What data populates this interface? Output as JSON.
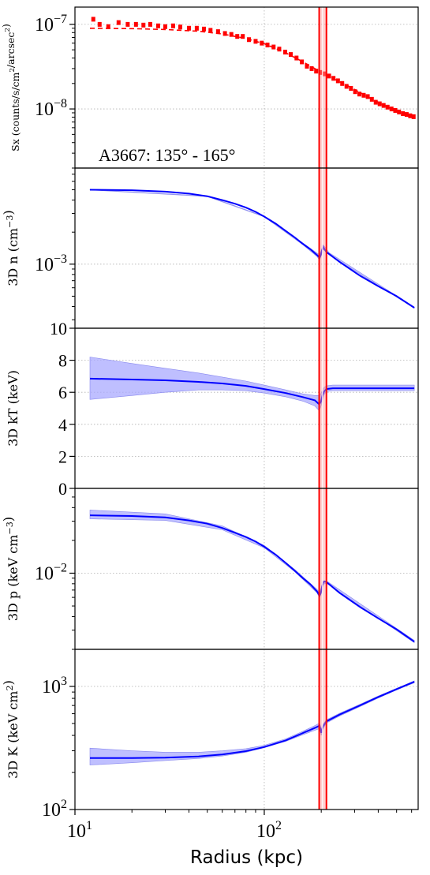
{
  "chart_data": {
    "type": "line",
    "annotation": "A3667: 135° - 165°",
    "xlabel": "Radius (kpc)",
    "x_scale": "log",
    "xlim": [
      10,
      650
    ],
    "x_ticks": [
      {
        "value": 10,
        "base": "10",
        "exp": "1"
      },
      {
        "value": 100,
        "base": "10",
        "exp": "2"
      }
    ],
    "grid": true,
    "shock_band": {
      "x_inner": 195,
      "x_outer": 213,
      "x_center": 203,
      "color": "#ff0000"
    },
    "colors": {
      "data": "#ff0000",
      "model": "#0000ff",
      "band": "#aaaaff",
      "shock": "#ff0000"
    },
    "panels": [
      {
        "key": "sx",
        "ylabel": "Sx (counts/s/cm²/arcsec²)",
        "ylabel_parts": [
          {
            "t": "Sx (counts/s/cm"
          },
          {
            "t": "2",
            "sup": true
          },
          {
            "t": "/arcsec"
          },
          {
            "t": "2",
            "sup": true
          },
          {
            "t": ")"
          }
        ],
        "y_scale": "log",
        "ylim": [
          2e-09,
          1.6e-07
        ],
        "y_ticks": [
          {
            "value": 1e-08,
            "base": "10",
            "exp": "−8"
          },
          {
            "value": 1e-07,
            "base": "10",
            "exp": "−7"
          }
        ],
        "data_points": [
          [
            12.5,
            1.15e-07
          ],
          [
            13.5,
            1e-07
          ],
          [
            15,
            9.4e-08
          ],
          [
            17,
            1.05e-07
          ],
          [
            19,
            1e-07
          ],
          [
            21,
            1e-07
          ],
          [
            23,
            9.8e-08
          ],
          [
            25,
            1e-07
          ],
          [
            27.5,
            9.6e-08
          ],
          [
            30,
            9.4e-08
          ],
          [
            33,
            9.6e-08
          ],
          [
            36,
            9.3e-08
          ],
          [
            40,
            9e-08
          ],
          [
            44,
            9e-08
          ],
          [
            48,
            8.8e-08
          ],
          [
            52,
            8.5e-08
          ],
          [
            57,
            8.2e-08
          ],
          [
            62,
            7.8e-08
          ],
          [
            67,
            7.6e-08
          ],
          [
            72,
            7.2e-08
          ],
          [
            77,
            7.2e-08
          ],
          [
            83,
            6.6e-08
          ],
          [
            90,
            6.3e-08
          ],
          [
            97,
            6e-08
          ],
          [
            104,
            5.7e-08
          ],
          [
            112,
            5.4e-08
          ],
          [
            120,
            5.1e-08
          ],
          [
            129,
            4.7e-08
          ],
          [
            138,
            4.4e-08
          ],
          [
            148,
            4e-08
          ],
          [
            158,
            3.6e-08
          ],
          [
            168,
            3.2e-08
          ],
          [
            178,
            3e-08
          ],
          [
            188,
            2.8e-08
          ],
          [
            198,
            2.7e-08
          ],
          [
            208,
            2.6e-08
          ],
          [
            220,
            2.45e-08
          ],
          [
            232,
            2.3e-08
          ],
          [
            245,
            2.15e-08
          ],
          [
            258,
            2e-08
          ],
          [
            272,
            1.85e-08
          ],
          [
            287,
            1.75e-08
          ],
          [
            302,
            1.6e-08
          ],
          [
            318,
            1.5e-08
          ],
          [
            335,
            1.45e-08
          ],
          [
            352,
            1.4e-08
          ],
          [
            370,
            1.3e-08
          ],
          [
            388,
            1.2e-08
          ],
          [
            407,
            1.15e-08
          ],
          [
            427,
            1.1e-08
          ],
          [
            448,
            1.05e-08
          ],
          [
            470,
            1e-08
          ],
          [
            492,
            9.6e-09
          ],
          [
            515,
            9.2e-09
          ],
          [
            540,
            8.8e-09
          ],
          [
            565,
            8.6e-09
          ],
          [
            590,
            8.3e-09
          ],
          [
            615,
            8.1e-09
          ]
        ],
        "model": {
          "x": [
            12,
            20,
            30,
            45,
            60,
            80,
            100,
            130,
            160,
            190,
            203,
            230,
            280,
            350,
            450,
            620
          ],
          "y": [
            9e-08,
            8.9e-08,
            8.7e-08,
            8.3e-08,
            7.7e-08,
            6.8e-08,
            5.9e-08,
            4.6e-08,
            3.6e-08,
            2.9e-08,
            2.65e-08,
            2.3e-08,
            1.85e-08,
            1.4e-08,
            1.05e-08,
            8e-09
          ]
        },
        "show_annotation": true
      },
      {
        "key": "n",
        "ylabel": "3D n (cm⁻³)",
        "ylabel_parts": [
          {
            "t": "3D n (cm"
          },
          {
            "t": "−3",
            "sup": true
          },
          {
            "t": ")"
          }
        ],
        "y_scale": "log",
        "ylim": [
          0.00025,
          0.008
        ],
        "y_ticks": [
          {
            "value": 0.001,
            "base": "10",
            "exp": "−3"
          }
        ],
        "model": {
          "x": [
            12,
            20,
            30,
            40,
            50,
            60,
            70,
            80,
            90,
            100,
            115,
            130,
            145,
            160,
            175,
            190,
            196,
            199,
            202,
            205,
            208,
            213,
            250,
            320,
            400,
            500,
            620
          ],
          "y": [
            0.005,
            0.00495,
            0.0048,
            0.0046,
            0.00435,
            0.004,
            0.0037,
            0.0034,
            0.0031,
            0.0028,
            0.0024,
            0.00205,
            0.00178,
            0.00155,
            0.00138,
            0.00122,
            0.00115,
            0.00122,
            0.00135,
            0.00145,
            0.00138,
            0.0013,
            0.00105,
            0.00078,
            0.00062,
            0.0005,
            0.00039
          ]
        },
        "band": {
          "x": [
            12,
            50,
            100,
            160,
            190,
            196,
            205,
            220,
            620
          ],
          "lower": [
            0.00498,
            0.00432,
            0.00278,
            0.00152,
            0.00118,
            0.00109,
            0.00138,
            0.00123,
            0.000385
          ],
          "upper": [
            0.00502,
            0.00438,
            0.00282,
            0.00158,
            0.00127,
            0.00122,
            0.00152,
            0.00128,
            0.000395
          ]
        }
      },
      {
        "key": "kT",
        "ylabel": "3D kT (keV)",
        "ylabel_parts": [
          {
            "t": "3D kT (keV)"
          }
        ],
        "y_scale": "linear",
        "ylim": [
          0,
          10
        ],
        "y_ticks": [
          {
            "value": 0,
            "label": "0"
          },
          {
            "value": 2,
            "label": "2"
          },
          {
            "value": 4,
            "label": "4"
          },
          {
            "value": 6,
            "label": "6"
          },
          {
            "value": 8,
            "label": "8"
          },
          {
            "value": 10,
            "label": "10"
          }
        ],
        "model": {
          "x": [
            12,
            20,
            30,
            45,
            60,
            80,
            100,
            130,
            160,
            185,
            195,
            199,
            203,
            207,
            213,
            230,
            300,
            620
          ],
          "y": [
            6.85,
            6.8,
            6.75,
            6.65,
            6.55,
            6.4,
            6.2,
            5.95,
            5.7,
            5.5,
            5.25,
            5.4,
            5.8,
            6.05,
            6.2,
            6.25,
            6.25,
            6.25
          ]
        },
        "band": {
          "x": [
            12,
            20,
            30,
            45,
            60,
            80,
            100,
            130,
            160,
            185,
            195,
            199,
            203,
            207,
            213,
            230,
            620
          ],
          "lower": [
            5.55,
            5.8,
            6.0,
            6.15,
            6.15,
            6.1,
            5.95,
            5.72,
            5.45,
            5.15,
            4.85,
            5.1,
            5.5,
            5.85,
            6.05,
            6.1,
            6.1
          ],
          "upper": [
            8.2,
            7.8,
            7.5,
            7.2,
            6.95,
            6.7,
            6.45,
            6.15,
            5.9,
            5.8,
            5.8,
            5.9,
            6.15,
            6.3,
            6.4,
            6.45,
            6.45
          ]
        }
      },
      {
        "key": "p",
        "ylabel": "3D p (keV cm⁻³)",
        "ylabel_parts": [
          {
            "t": "3D p (keV cm"
          },
          {
            "t": "−3",
            "sup": true
          },
          {
            "t": ")"
          }
        ],
        "y_scale": "log",
        "ylim": [
          0.002,
          0.06
        ],
        "y_ticks": [
          {
            "value": 0.01,
            "base": "10",
            "exp": "−2"
          }
        ],
        "model": {
          "x": [
            12,
            20,
            30,
            40,
            50,
            60,
            70,
            80,
            90,
            100,
            115,
            130,
            145,
            160,
            175,
            190,
            196,
            199,
            202,
            205,
            208,
            213,
            250,
            320,
            400,
            500,
            620
          ],
          "y": [
            0.034,
            0.0335,
            0.0325,
            0.0305,
            0.0285,
            0.026,
            0.0235,
            0.0215,
            0.0195,
            0.0175,
            0.0148,
            0.0124,
            0.0105,
            0.009,
            0.0079,
            0.0068,
            0.0062,
            0.0066,
            0.0075,
            0.0082,
            0.0084,
            0.0083,
            0.0066,
            0.0049,
            0.00385,
            0.00305,
            0.00235
          ]
        },
        "band": {
          "x": [
            12,
            30,
            60,
            100,
            145,
            190,
            196,
            205,
            213,
            620
          ],
          "lower": [
            0.0315,
            0.0305,
            0.025,
            0.0171,
            0.0103,
            0.0066,
            0.0059,
            0.0079,
            0.0081,
            0.0023
          ],
          "upper": [
            0.038,
            0.035,
            0.0272,
            0.018,
            0.0108,
            0.0071,
            0.0066,
            0.0085,
            0.0085,
            0.00242
          ]
        }
      },
      {
        "key": "K",
        "ylabel": "3D K (keV cm²)",
        "ylabel_parts": [
          {
            "t": "3D K (keV cm"
          },
          {
            "t": "2",
            "sup": true
          },
          {
            "t": ")"
          }
        ],
        "y_scale": "log",
        "ylim": [
          100,
          2000
        ],
        "y_ticks": [
          {
            "value": 100,
            "base": "10",
            "exp": "2"
          },
          {
            "value": 1000,
            "base": "10",
            "exp": "3"
          }
        ],
        "model": {
          "x": [
            12,
            20,
            30,
            45,
            60,
            80,
            100,
            130,
            160,
            185,
            196,
            200,
            204,
            213,
            250,
            320,
            400,
            500,
            620
          ],
          "y": [
            262,
            262,
            264,
            270,
            280,
            298,
            322,
            365,
            418,
            460,
            480,
            420,
            470,
            520,
            590,
            700,
            820,
            950,
            1090
          ]
        },
        "band": {
          "x": [
            12,
            20,
            30,
            45,
            60,
            80,
            100,
            130,
            160,
            185,
            196,
            200,
            204,
            213,
            250,
            320,
            400,
            500,
            620
          ],
          "lower": [
            230,
            240,
            250,
            260,
            272,
            292,
            318,
            358,
            405,
            440,
            455,
            400,
            450,
            505,
            575,
            685,
            805,
            935,
            1070
          ],
          "upper": [
            315,
            300,
            292,
            292,
            300,
            312,
            332,
            375,
            432,
            480,
            505,
            445,
            492,
            535,
            605,
            715,
            835,
            965,
            1110
          ]
        }
      }
    ]
  }
}
